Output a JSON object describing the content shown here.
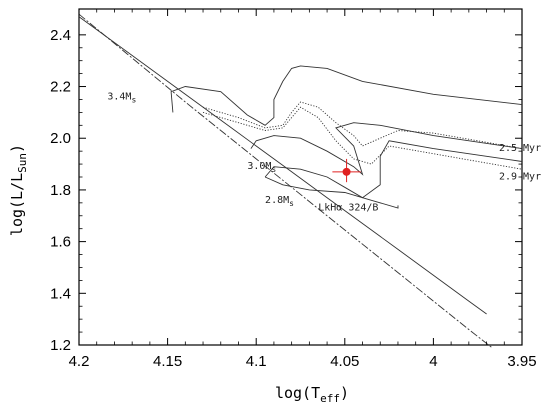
{
  "chart_data": {
    "type": "line",
    "x_axis": {
      "reversed": true,
      "range": [
        4.2,
        3.95
      ],
      "ticks": [
        4.2,
        4.15,
        4.1,
        4.05,
        4.0,
        3.95
      ],
      "tick_labels": [
        "4.2",
        "4.15",
        "4.1",
        "4.05",
        "4",
        "3.95"
      ],
      "label_main": "log(T",
      "label_sub": "eff",
      "label_end": ")"
    },
    "y_axis": {
      "range": [
        1.2,
        2.5
      ],
      "ticks": [
        1.2,
        1.4,
        1.6,
        1.8,
        2.0,
        2.2,
        2.4
      ],
      "tick_labels": [
        "1.2",
        "1.4",
        "1.6",
        "1.8",
        "2.0",
        "2.2",
        "2.4"
      ],
      "label_main": "log(L/L",
      "label_sub": "Sun",
      "label_end": ")"
    },
    "series": [
      {
        "style": "solid",
        "points": [
          [
            4.2,
            2.47
          ],
          [
            4.17,
            2.32
          ],
          [
            4.14,
            2.17
          ],
          [
            4.12,
            2.07
          ],
          [
            4.1,
            1.97
          ],
          [
            4.08,
            1.87
          ],
          [
            4.06,
            1.77
          ],
          [
            4.04,
            1.67
          ],
          [
            4.02,
            1.57
          ],
          [
            4.0,
            1.47
          ],
          [
            3.98,
            1.37
          ],
          [
            3.97,
            1.32
          ]
        ]
      },
      {
        "style": "dashdot",
        "points": [
          [
            4.2,
            2.48
          ],
          [
            4.17,
            2.31
          ],
          [
            4.14,
            2.14
          ],
          [
            4.12,
            2.03
          ],
          [
            4.1,
            1.92
          ],
          [
            4.08,
            1.81
          ],
          [
            4.06,
            1.7
          ],
          [
            4.04,
            1.59
          ],
          [
            4.02,
            1.48
          ],
          [
            4.0,
            1.37
          ],
          [
            3.98,
            1.26
          ],
          [
            3.967,
            1.19
          ]
        ]
      },
      {
        "style": "solid",
        "points": [
          [
            4.147,
            2.1
          ],
          [
            4.148,
            2.18
          ],
          [
            4.14,
            2.2
          ],
          [
            4.12,
            2.18
          ],
          [
            4.105,
            2.09
          ],
          [
            4.095,
            2.05
          ],
          [
            4.09,
            2.08
          ],
          [
            4.09,
            2.15
          ],
          [
            4.085,
            2.22
          ],
          [
            4.08,
            2.27
          ],
          [
            4.075,
            2.28
          ],
          [
            4.06,
            2.27
          ],
          [
            4.04,
            2.22
          ],
          [
            4.0,
            2.17
          ],
          [
            3.95,
            2.13
          ]
        ]
      },
      {
        "style": "solid",
        "points": [
          [
            4.103,
            1.96
          ],
          [
            4.1,
            1.99
          ],
          [
            4.09,
            2.01
          ],
          [
            4.075,
            2.0
          ],
          [
            4.06,
            1.95
          ],
          [
            4.045,
            1.89
          ],
          [
            4.04,
            1.86
          ],
          [
            4.045,
            1.97
          ],
          [
            4.055,
            2.04
          ],
          [
            4.045,
            2.06
          ],
          [
            4.03,
            2.05
          ],
          [
            4.0,
            2.01
          ],
          [
            3.95,
            1.96
          ]
        ]
      },
      {
        "style": "solid",
        "points": [
          [
            4.095,
            1.85
          ],
          [
            4.09,
            1.89
          ],
          [
            4.075,
            1.88
          ],
          [
            4.06,
            1.85
          ],
          [
            4.05,
            1.81
          ],
          [
            4.04,
            1.77
          ],
          [
            4.03,
            1.82
          ],
          [
            4.03,
            1.93
          ],
          [
            4.025,
            1.99
          ],
          [
            4.0,
            1.96
          ],
          [
            3.97,
            1.93
          ],
          [
            3.95,
            1.91
          ]
        ]
      },
      {
        "style": "solid",
        "points": [
          [
            4.095,
            1.85
          ],
          [
            4.085,
            1.82
          ],
          [
            4.07,
            1.8
          ],
          [
            4.05,
            1.79
          ],
          [
            4.035,
            1.76
          ],
          [
            4.02,
            1.73
          ],
          [
            4.02,
            1.74
          ]
        ]
      },
      {
        "style": "dotted",
        "points": [
          [
            4.13,
            2.12
          ],
          [
            4.11,
            2.08
          ],
          [
            4.095,
            2.04
          ],
          [
            4.085,
            2.05
          ],
          [
            4.08,
            2.1
          ],
          [
            4.075,
            2.14
          ],
          [
            4.065,
            2.12
          ],
          [
            4.055,
            2.06
          ],
          [
            4.045,
            2.01
          ],
          [
            4.04,
            1.97
          ],
          [
            4.03,
            2.0
          ],
          [
            4.02,
            2.03
          ],
          [
            4.0,
            2.02
          ],
          [
            3.975,
            1.99
          ],
          [
            3.95,
            1.96
          ]
        ]
      },
      {
        "style": "dotted",
        "points": [
          [
            4.13,
            2.1
          ],
          [
            4.11,
            2.06
          ],
          [
            4.095,
            2.03
          ],
          [
            4.085,
            2.04
          ],
          [
            4.08,
            2.08
          ],
          [
            4.075,
            2.12
          ],
          [
            4.065,
            2.08
          ],
          [
            4.055,
            1.99
          ],
          [
            4.045,
            1.92
          ],
          [
            4.035,
            1.9
          ],
          [
            4.025,
            1.97
          ],
          [
            4.0,
            1.94
          ],
          [
            3.975,
            1.91
          ],
          [
            3.95,
            1.88
          ]
        ]
      }
    ],
    "data_point": {
      "x": 4.049,
      "y": 1.87,
      "x_err": 0.008,
      "y_err": [
        0.05,
        0.04
      ],
      "color": "#e02020"
    },
    "annotations": [
      {
        "id": "m34",
        "main": "3.4M",
        "sub": "s",
        "x": 4.184,
        "y": 2.15,
        "color": "#222222"
      },
      {
        "id": "m30",
        "main": "3.0M",
        "sub": "s",
        "x": 4.105,
        "y": 1.88,
        "color": "#222222"
      },
      {
        "id": "m28",
        "main": "2.8M",
        "sub": "s",
        "x": 4.095,
        "y": 1.75,
        "color": "#222222"
      },
      {
        "id": "myr25",
        "main": "2.5 Myr",
        "sub": "",
        "x": 3.963,
        "y": 1.95,
        "color": "#222222"
      },
      {
        "id": "myr29",
        "main": "2.9 Myr",
        "sub": "",
        "x": 3.963,
        "y": 1.84,
        "color": "#222222"
      },
      {
        "id": "star",
        "main": "LkHα 324/B",
        "sub": "",
        "x": 4.065,
        "y": 1.72,
        "color": "#e02020"
      }
    ],
    "grid": false,
    "legend": "none"
  }
}
